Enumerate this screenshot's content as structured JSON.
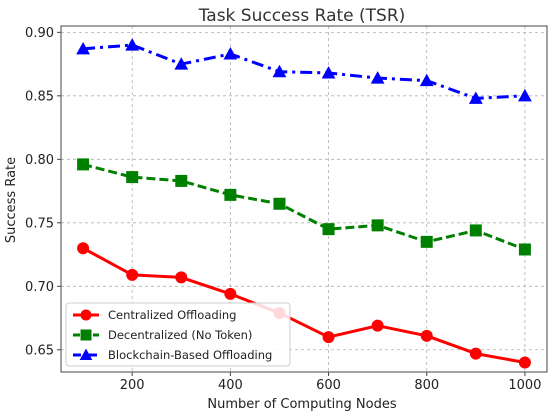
{
  "chart_data": {
    "type": "line",
    "title": "Task Success Rate (TSR)",
    "xlabel": "Number of Computing Nodes",
    "ylabel": "Success Rate",
    "x": [
      100,
      200,
      300,
      400,
      500,
      600,
      700,
      800,
      900,
      1000
    ],
    "xlim": [
      55,
      1045
    ],
    "ylim": [
      0.6325,
      0.905
    ],
    "xticks": [
      200,
      400,
      600,
      800,
      1000
    ],
    "xtick_labels": [
      "200",
      "400",
      "600",
      "800",
      "1000"
    ],
    "yticks": [
      0.65,
      0.7,
      0.75,
      0.8,
      0.85,
      0.9
    ],
    "ytick_labels": [
      "0.65",
      "0.70",
      "0.75",
      "0.80",
      "0.85",
      "0.90"
    ],
    "grid": true,
    "legend_position": "bottom-left",
    "series": [
      {
        "name": "Centralized Offloading",
        "color": "#ff0000",
        "line_style": "solid",
        "marker": "circle",
        "values": [
          0.73,
          0.709,
          0.707,
          0.694,
          0.679,
          0.66,
          0.669,
          0.661,
          0.647,
          0.64
        ]
      },
      {
        "name": "Decentralized (No Token)",
        "color": "#008000",
        "line_style": "dashed",
        "marker": "square",
        "values": [
          0.796,
          0.786,
          0.783,
          0.772,
          0.765,
          0.745,
          0.748,
          0.735,
          0.744,
          0.729
        ]
      },
      {
        "name": "Blockchain-Based Offloading",
        "color": "#0000ff",
        "line_style": "dashdot",
        "marker": "triangle",
        "values": [
          0.887,
          0.89,
          0.875,
          0.883,
          0.869,
          0.868,
          0.864,
          0.862,
          0.848,
          0.85
        ]
      }
    ]
  }
}
